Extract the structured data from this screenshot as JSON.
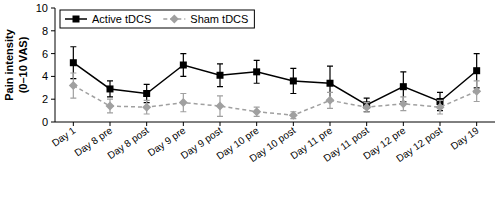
{
  "chart_data": {
    "type": "line",
    "y_label": [
      "Pain intensity",
      "(0–10 VAS)"
    ],
    "categories": [
      "Day 1",
      "Day 8 pre",
      "Day 8 post",
      "Day 9 pre",
      "Day 9 post",
      "Day 10 pre",
      "Day 10 post",
      "Day 11 pre",
      "Day 11 post",
      "Day 12 pre",
      "Day 12 post",
      "Day 19"
    ],
    "series": [
      {
        "name": "Active tDCS",
        "color": "#000000",
        "marker": "square",
        "line_style": "solid",
        "values": [
          5.2,
          2.9,
          2.5,
          5.0,
          4.1,
          4.4,
          3.6,
          3.4,
          1.5,
          3.1,
          1.8,
          4.5
        ],
        "errors": [
          1.4,
          0.7,
          0.8,
          1.0,
          1.0,
          1.0,
          1.1,
          1.5,
          0.6,
          1.3,
          0.8,
          1.5
        ]
      },
      {
        "name": "Sham tDCS",
        "color": "#a0a0a0",
        "marker": "diamond",
        "line_style": "dashed",
        "values": [
          3.2,
          1.4,
          1.3,
          1.7,
          1.4,
          0.9,
          0.6,
          1.9,
          1.3,
          1.6,
          1.3,
          2.7
        ],
        "errors": [
          1.1,
          0.6,
          0.6,
          0.8,
          0.9,
          0.4,
          0.3,
          0.7,
          0.4,
          0.6,
          0.6,
          0.9
        ]
      }
    ],
    "ylim": [
      0,
      10
    ],
    "yticks": [
      0,
      2,
      4,
      6,
      8,
      10
    ],
    "legend": "upper left",
    "grid": false
  }
}
